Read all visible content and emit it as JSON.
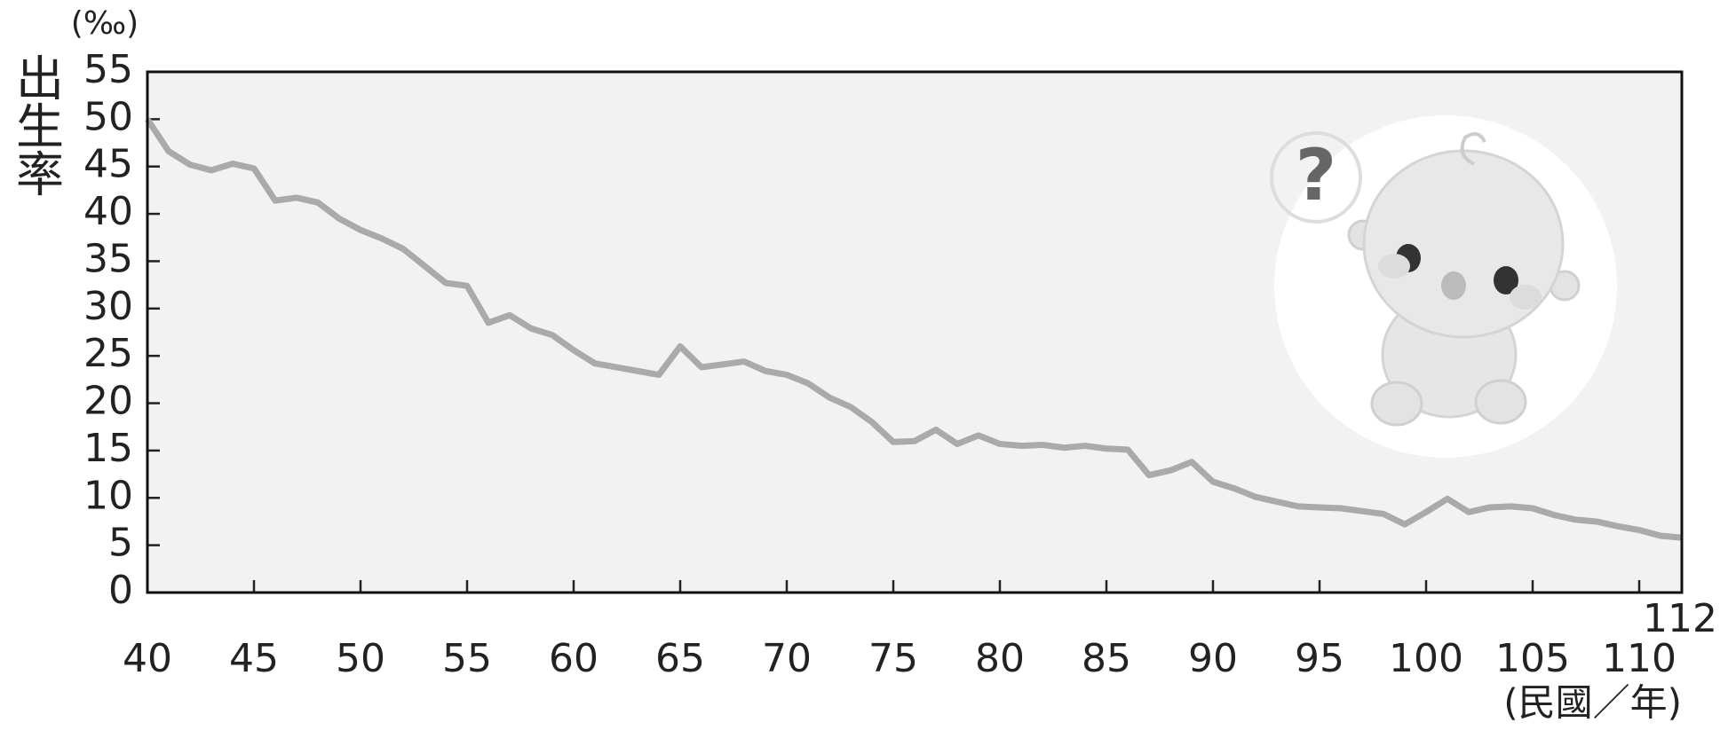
{
  "chart_data": {
    "type": "line",
    "y_label": "出生率",
    "y_unit": "(‰)",
    "x_label": "(民國／年)",
    "x": [
      40,
      41,
      42,
      43,
      44,
      45,
      46,
      47,
      48,
      49,
      50,
      51,
      52,
      53,
      54,
      55,
      56,
      57,
      58,
      59,
      60,
      61,
      62,
      63,
      64,
      65,
      66,
      67,
      68,
      69,
      70,
      71,
      72,
      73,
      74,
      75,
      76,
      77,
      78,
      79,
      80,
      81,
      82,
      83,
      84,
      85,
      86,
      87,
      88,
      89,
      90,
      91,
      92,
      93,
      94,
      95,
      96,
      97,
      98,
      99,
      100,
      101,
      102,
      103,
      104,
      105,
      106,
      107,
      108,
      109,
      110,
      111,
      112
    ],
    "series": [
      {
        "color": "#aaaaaa",
        "values": [
          50.0,
          46.6,
          45.2,
          44.6,
          45.3,
          44.8,
          41.4,
          41.7,
          41.2,
          39.5,
          38.3,
          37.4,
          36.3,
          34.5,
          32.7,
          32.4,
          28.5,
          29.3,
          27.9,
          27.2,
          25.6,
          24.2,
          23.8,
          23.4,
          23.0,
          26.0,
          23.8,
          24.1,
          24.4,
          23.4,
          23.0,
          22.1,
          20.6,
          19.6,
          18.0,
          15.9,
          16.0,
          17.2,
          15.7,
          16.6,
          15.7,
          15.5,
          15.6,
          15.3,
          15.5,
          15.2,
          15.1,
          12.4,
          12.9,
          13.8,
          11.7,
          11.0,
          10.1,
          9.6,
          9.1,
          9.0,
          8.9,
          8.6,
          8.3,
          7.2,
          8.5,
          9.9,
          8.5,
          9.0,
          9.1,
          8.9,
          8.2,
          7.7,
          7.5,
          7.0,
          6.6,
          6.0,
          5.8
        ]
      }
    ],
    "xlim": [
      40,
      112
    ],
    "xticks": [
      40,
      45,
      50,
      55,
      60,
      65,
      70,
      75,
      80,
      85,
      90,
      95,
      100,
      105,
      110,
      112
    ],
    "ylim": [
      0,
      55
    ],
    "yticks": [
      0,
      5,
      10,
      15,
      20,
      25,
      30,
      35,
      40,
      45,
      50,
      55
    ],
    "background": "#f2f2f2"
  }
}
